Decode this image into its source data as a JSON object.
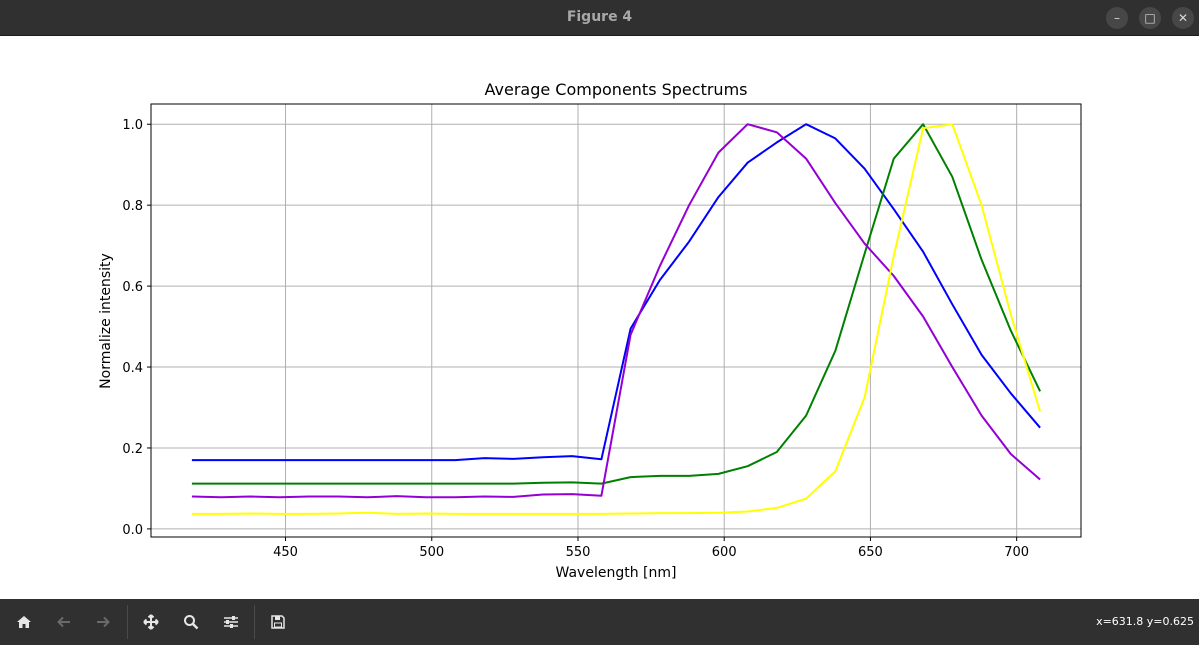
{
  "window": {
    "title": "Figure 4",
    "controls": [
      {
        "name": "minimize-button",
        "glyph": "–"
      },
      {
        "name": "maximize-button",
        "glyph": "□"
      },
      {
        "name": "close-button",
        "glyph": "✕"
      }
    ]
  },
  "toolbar": {
    "buttons": [
      {
        "name": "home-button",
        "icon": "home-icon"
      },
      {
        "name": "back-button",
        "icon": "arrow-left-icon"
      },
      {
        "name": "forward-button",
        "icon": "arrow-right-icon"
      },
      {
        "name": "pan-button",
        "icon": "move-icon"
      },
      {
        "name": "zoom-button",
        "icon": "magnifier-icon"
      },
      {
        "name": "configure-subplots-button",
        "icon": "sliders-icon"
      },
      {
        "name": "save-button",
        "icon": "floppy-disk-icon"
      }
    ],
    "coords": "x=631.8 y=0.625"
  },
  "chart_data": {
    "type": "line",
    "title": "Average Components Spectrums",
    "xlabel": "Wavelength [nm]",
    "ylabel": "Normalize intensity",
    "xlim": [
      404,
      722
    ],
    "ylim": [
      -0.02,
      1.05
    ],
    "xticks": [
      450,
      500,
      550,
      600,
      650,
      700
    ],
    "yticks": [
      0.0,
      0.2,
      0.4,
      0.6,
      0.8,
      1.0
    ],
    "ytick_labels": [
      "0.0",
      "0.2",
      "0.4",
      "0.6",
      "0.8",
      "1.0"
    ],
    "grid": true,
    "x": [
      418,
      428,
      438,
      448,
      458,
      468,
      478,
      488,
      498,
      508,
      518,
      528,
      538,
      548,
      558,
      568,
      578,
      588,
      598,
      608,
      618,
      628,
      638,
      648,
      658,
      668,
      678,
      688,
      698,
      708
    ],
    "series": [
      {
        "color": "#0000ff",
        "values": [
          0.17,
          0.17,
          0.17,
          0.17,
          0.17,
          0.17,
          0.17,
          0.17,
          0.17,
          0.17,
          0.175,
          0.173,
          0.177,
          0.18,
          0.172,
          0.495,
          0.615,
          0.71,
          0.82,
          0.905,
          0.955,
          1.0,
          0.965,
          0.89,
          0.79,
          0.685,
          0.555,
          0.43,
          0.335,
          0.25
        ]
      },
      {
        "color": "#008000",
        "values": [
          0.112,
          0.112,
          0.112,
          0.112,
          0.112,
          0.112,
          0.112,
          0.112,
          0.112,
          0.112,
          0.112,
          0.112,
          0.114,
          0.115,
          0.112,
          0.128,
          0.131,
          0.131,
          0.136,
          0.155,
          0.19,
          0.28,
          0.44,
          0.68,
          0.915,
          1.0,
          0.87,
          0.665,
          0.49,
          0.34
        ]
      },
      {
        "color": "#9400d3",
        "values": [
          0.08,
          0.078,
          0.08,
          0.078,
          0.08,
          0.08,
          0.078,
          0.081,
          0.078,
          0.078,
          0.08,
          0.079,
          0.085,
          0.086,
          0.082,
          0.48,
          0.65,
          0.8,
          0.93,
          1.0,
          0.98,
          0.915,
          0.805,
          0.705,
          0.625,
          0.525,
          0.4,
          0.28,
          0.185,
          0.122
        ]
      },
      {
        "color": "#ffff00",
        "values": [
          0.037,
          0.037,
          0.038,
          0.037,
          0.037,
          0.038,
          0.04,
          0.037,
          0.038,
          0.037,
          0.037,
          0.037,
          0.037,
          0.037,
          0.037,
          0.038,
          0.039,
          0.039,
          0.04,
          0.043,
          0.052,
          0.075,
          0.142,
          0.325,
          0.675,
          0.99,
          1.0,
          0.8,
          0.53,
          0.29
        ]
      }
    ]
  }
}
